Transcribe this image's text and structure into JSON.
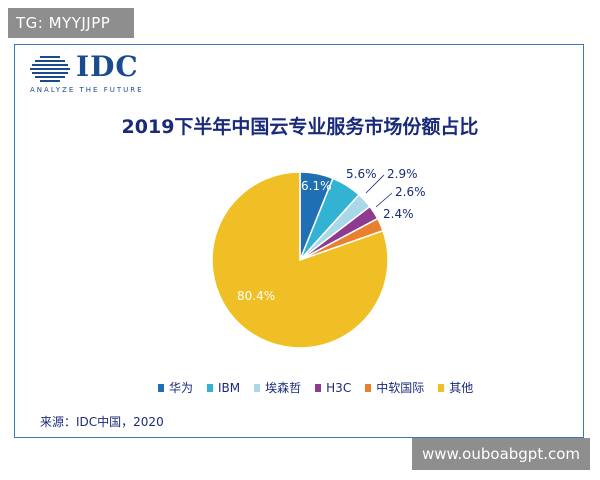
{
  "watermark_top": "TG: MYYJJPP",
  "watermark_bottom": "www.ouboabgpt.com",
  "logo": {
    "name": "IDC",
    "tagline": "ANALYZE THE FUTURE"
  },
  "source": "来源：IDC中国，2020",
  "chart_data": {
    "type": "pie",
    "title": "2019下半年中国云专业服务市场份额占比",
    "categories": [
      "华为",
      "IBM",
      "埃森哲",
      "H3C",
      "中软国际",
      "其他"
    ],
    "values": [
      6.1,
      5.6,
      2.9,
      2.6,
      2.4,
      80.4
    ],
    "labels": [
      "6.1%",
      "5.6%",
      "2.9%",
      "2.6%",
      "2.4%",
      "80.4%"
    ],
    "colors": [
      "#1f6fb5",
      "#33b3d3",
      "#a9d9e9",
      "#8e3b8f",
      "#e8802e",
      "#f0bf25"
    ],
    "legend": "bottom"
  }
}
